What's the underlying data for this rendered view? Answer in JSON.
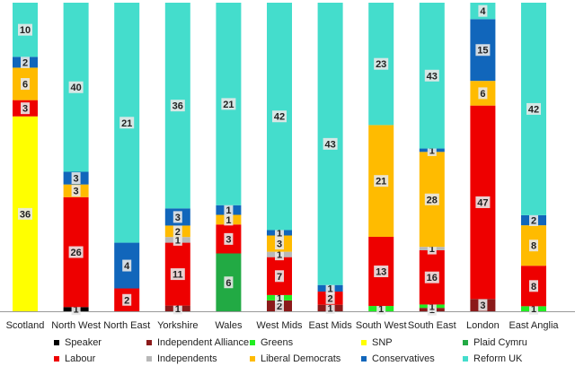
{
  "chart_data": {
    "type": "stacked-bar-100",
    "title": "",
    "categories": [
      "Scotland",
      "North West",
      "North East",
      "Yorkshire",
      "Wales",
      "West Mids",
      "East Mids",
      "South West",
      "South East",
      "London",
      "East Anglia"
    ],
    "series": [
      {
        "name": "Speaker",
        "color": "#000000",
        "values": [
          0,
          1,
          0,
          0,
          0,
          0,
          0,
          0,
          0,
          0,
          0
        ]
      },
      {
        "name": "Independent Alliance",
        "color": "#8b1a1a",
        "values": [
          0,
          0,
          0,
          1,
          0,
          2,
          1,
          0,
          1,
          3,
          0
        ]
      },
      {
        "name": "Greens",
        "color": "#22ee22",
        "values": [
          0,
          0,
          0,
          0,
          0,
          1,
          0,
          1,
          1,
          0,
          1
        ]
      },
      {
        "name": "SNP",
        "color": "#ffff00",
        "values": [
          36,
          0,
          0,
          0,
          0,
          0,
          0,
          0,
          0,
          0,
          0
        ]
      },
      {
        "name": "Plaid Cymru",
        "color": "#22aa44",
        "values": [
          0,
          0,
          0,
          0,
          6,
          0,
          0,
          0,
          0,
          0,
          0
        ]
      },
      {
        "name": "Labour",
        "color": "#ee0000",
        "values": [
          3,
          26,
          2,
          11,
          3,
          7,
          2,
          13,
          16,
          47,
          8
        ]
      },
      {
        "name": "Independents",
        "color": "#b8b8b8",
        "values": [
          0,
          0,
          0,
          1,
          0,
          1,
          0,
          0,
          1,
          0,
          0
        ]
      },
      {
        "name": "Liberal Democrats",
        "color": "#ffbb00",
        "values": [
          6,
          3,
          0,
          2,
          1,
          3,
          0,
          21,
          28,
          6,
          8
        ]
      },
      {
        "name": "Conservatives",
        "color": "#1166bb",
        "values": [
          2,
          3,
          4,
          3,
          1,
          1,
          1,
          0,
          1,
          15,
          2
        ]
      },
      {
        "name": "Reform UK",
        "color": "#44ddcc",
        "values": [
          10,
          40,
          21,
          36,
          21,
          42,
          43,
          23,
          43,
          4,
          42
        ]
      }
    ],
    "legend": [
      {
        "name": "Speaker",
        "color": "#000000"
      },
      {
        "name": "Independent Alliance",
        "color": "#8b1a1a"
      },
      {
        "name": "Greens",
        "color": "#22ee22"
      },
      {
        "name": "SNP",
        "color": "#ffff00"
      },
      {
        "name": "Plaid Cymru",
        "color": "#22aa44"
      },
      {
        "name": "Labour",
        "color": "#ee0000"
      },
      {
        "name": "Independents",
        "color": "#b8b8b8"
      },
      {
        "name": "Liberal Democrats",
        "color": "#ffbb00"
      },
      {
        "name": "Conservatives",
        "color": "#1166bb"
      },
      {
        "name": "Reform UK",
        "color": "#44ddcc"
      }
    ],
    "legend_position": "bottom",
    "grid": false
  }
}
